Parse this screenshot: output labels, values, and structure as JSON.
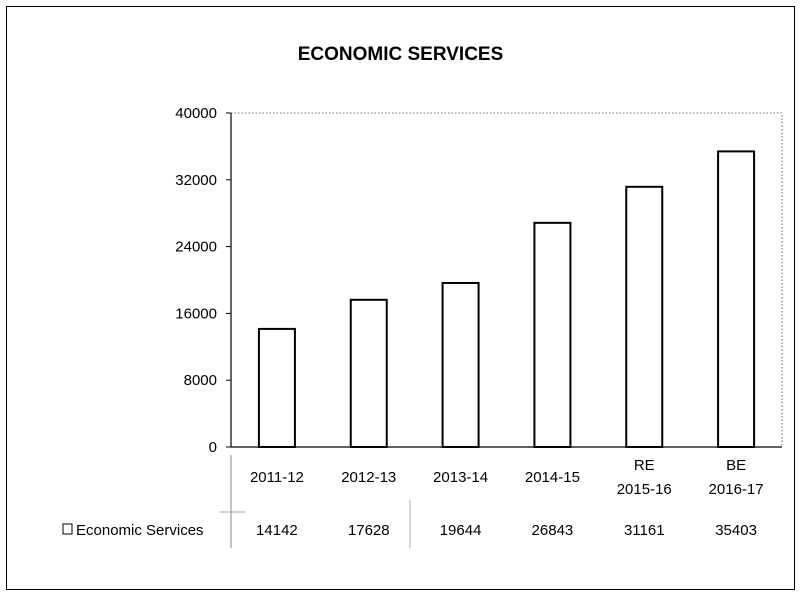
{
  "chart_data": {
    "type": "bar",
    "title": "ECONOMIC SERVICES",
    "xlabel": "",
    "ylabel": "",
    "ylim": [
      0,
      40000
    ],
    "yticks": [
      0,
      8000,
      16000,
      24000,
      32000,
      40000
    ],
    "grid": false,
    "categories": [
      [
        "2011-12"
      ],
      [
        "2012-13"
      ],
      [
        "2013-14"
      ],
      [
        "2014-15"
      ],
      [
        "RE",
        "2015-16"
      ],
      [
        "BE",
        "2016-17"
      ]
    ],
    "series": [
      {
        "name": "Economic Services",
        "values": [
          14142,
          17628,
          19644,
          26843,
          31161,
          35403
        ]
      }
    ],
    "data_table": true,
    "bar_fill": "#ffffff",
    "bar_stroke": "#000000"
  }
}
